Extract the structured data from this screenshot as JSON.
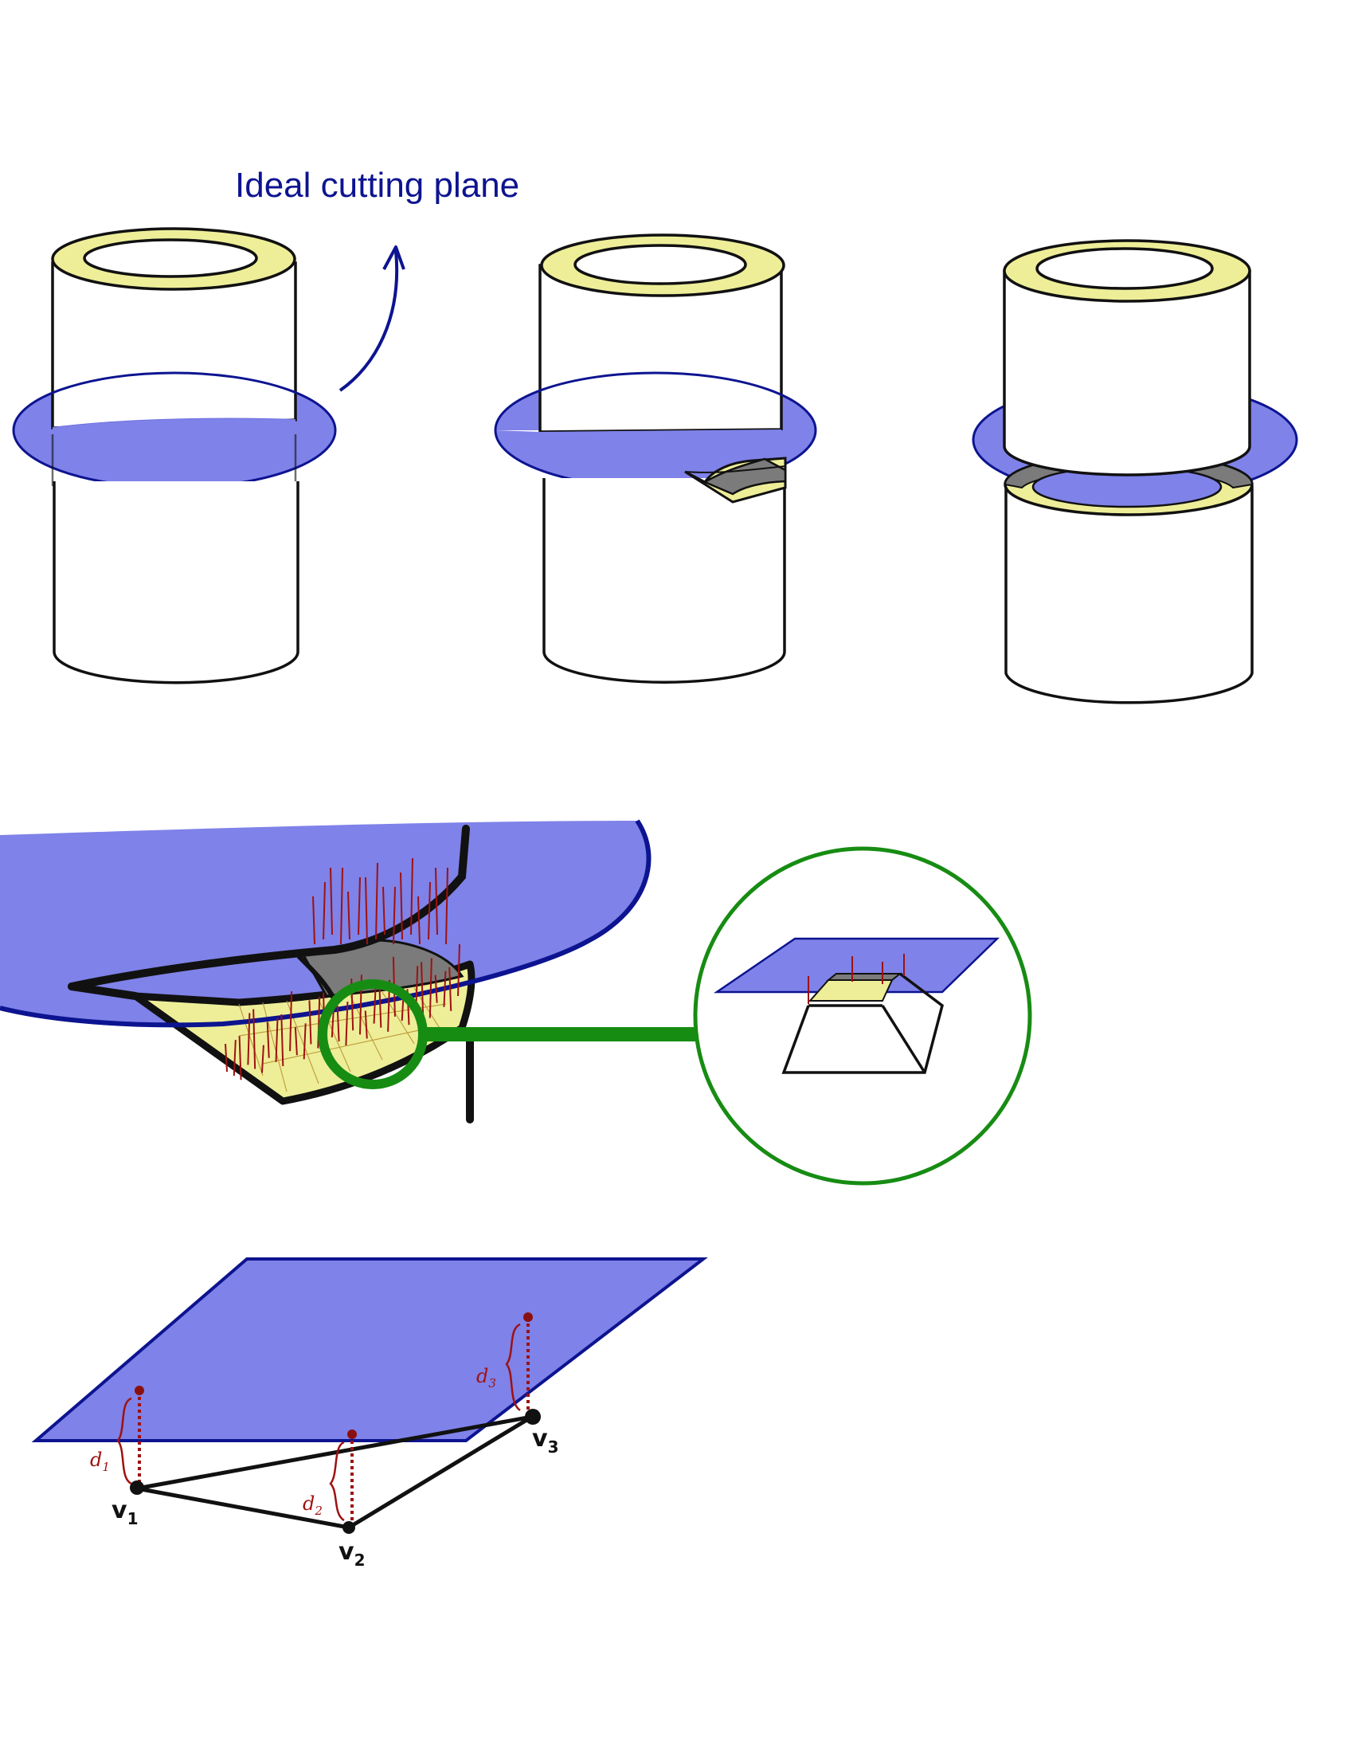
{
  "title": "Ideal cutting plane",
  "colors": {
    "plane": "#7f82e8",
    "plane_edge": "#0d1490",
    "ring": "#eeee99",
    "cut_face": "#7b7b7b",
    "normals": "#9e1111",
    "magnifier": "#178c13",
    "outline": "#111111"
  },
  "panels": [
    {
      "stage": "uncut",
      "description_icon": "cylinder-before-cut"
    },
    {
      "stage": "partial-cut",
      "description_icon": "cylinder-partial-cut"
    },
    {
      "stage": "full-cut",
      "description_icon": "cylinder-separated"
    }
  ],
  "triangle": {
    "vertices": [
      {
        "label": "v",
        "sub": "1"
      },
      {
        "label": "v",
        "sub": "2"
      },
      {
        "label": "v",
        "sub": "3"
      }
    ],
    "distances": [
      {
        "label": "d",
        "sub": "1"
      },
      {
        "label": "d",
        "sub": "2"
      },
      {
        "label": "d",
        "sub": "3"
      }
    ]
  }
}
